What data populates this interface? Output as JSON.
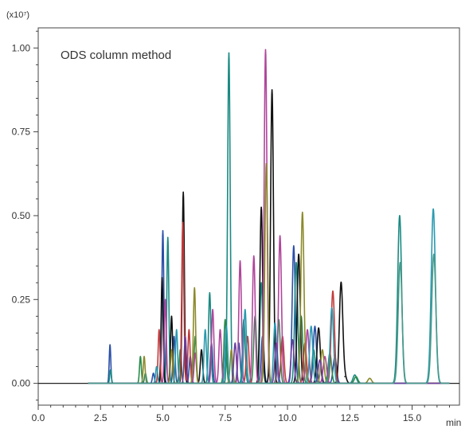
{
  "chart_data": {
    "type": "line",
    "title": "",
    "annotation": "ODS column method",
    "y_multiplier_label": "(x10⁷)",
    "xlabel": "min",
    "ylabel": "",
    "xlim": [
      0,
      16.9
    ],
    "ylim": [
      -0.065,
      1.06
    ],
    "x_ticks": [
      0.0,
      2.5,
      5.0,
      7.5,
      10.0,
      12.5,
      15.0
    ],
    "x_tick_labels": [
      "0.0",
      "2.5",
      "5.0",
      "7.5",
      "10.0",
      "12.5",
      "15.0"
    ],
    "x_minor_step": 0.5,
    "y_ticks": [
      0.0,
      0.25,
      0.5,
      0.75,
      1.0
    ],
    "y_tick_labels": [
      "0.00",
      "0.25",
      "0.50",
      "0.75",
      "1.00"
    ],
    "y_minor_step": 0.05,
    "grid": false,
    "baseline": 0.0,
    "series": [
      {
        "color": "#2b4fa8",
        "peaks": [
          [
            2.88,
            0.115
          ],
          [
            4.62,
            0.03
          ],
          [
            5.0,
            0.455
          ],
          [
            5.45,
            0.14
          ],
          [
            6.1,
            0.08
          ],
          [
            6.95,
            0.12
          ],
          [
            8.05,
            0.12
          ],
          [
            9.0,
            0.14
          ],
          [
            10.25,
            0.41
          ],
          [
            11.1,
            0.17
          ],
          [
            11.9,
            0.08
          ]
        ]
      },
      {
        "color": "#1a8a82",
        "peaks": [
          [
            2.9,
            0.04
          ],
          [
            4.3,
            0.03
          ],
          [
            5.2,
            0.435
          ],
          [
            6.88,
            0.27
          ],
          [
            7.65,
            0.985
          ],
          [
            8.25,
            0.19
          ],
          [
            8.95,
            0.3
          ],
          [
            10.35,
            0.36
          ],
          [
            11.05,
            0.1
          ],
          [
            12.7,
            0.025
          ],
          [
            14.5,
            0.5
          ]
        ]
      },
      {
        "color": "#2a8a4a",
        "peaks": [
          [
            4.1,
            0.08
          ],
          [
            5.7,
            0.1
          ],
          [
            6.3,
            0.14
          ],
          [
            7.5,
            0.19
          ],
          [
            8.7,
            0.2
          ],
          [
            9.65,
            0.19
          ],
          [
            10.55,
            0.2
          ],
          [
            11.7,
            0.09
          ],
          [
            12.75,
            0.02
          ]
        ]
      },
      {
        "color": "#111111",
        "peaks": [
          [
            4.97,
            0.315
          ],
          [
            5.35,
            0.2
          ],
          [
            5.82,
            0.57
          ],
          [
            6.55,
            0.1
          ],
          [
            8.95,
            0.525
          ],
          [
            9.38,
            0.875
          ],
          [
            10.45,
            0.385
          ],
          [
            11.25,
            0.165
          ],
          [
            12.15,
            0.3
          ],
          [
            12.3,
            0.02
          ]
        ]
      },
      {
        "color": "#c23b3b",
        "peaks": [
          [
            4.85,
            0.16
          ],
          [
            5.8,
            0.48
          ],
          [
            6.05,
            0.16
          ],
          [
            8.4,
            0.14
          ],
          [
            9.8,
            0.14
          ],
          [
            10.7,
            0.12
          ],
          [
            11.82,
            0.275
          ]
        ]
      },
      {
        "color": "#b0469c",
        "peaks": [
          [
            5.1,
            0.25
          ],
          [
            6.3,
            0.09
          ],
          [
            7.0,
            0.22
          ],
          [
            7.3,
            0.16
          ],
          [
            8.1,
            0.365
          ],
          [
            8.65,
            0.38
          ],
          [
            9.12,
            0.995
          ],
          [
            9.7,
            0.44
          ],
          [
            10.8,
            0.16
          ],
          [
            11.5,
            0.08
          ]
        ]
      },
      {
        "color": "#8c8a2a",
        "peaks": [
          [
            4.25,
            0.08
          ],
          [
            5.35,
            0.1
          ],
          [
            6.27,
            0.285
          ],
          [
            7.75,
            0.1
          ],
          [
            9.15,
            0.655
          ],
          [
            10.6,
            0.51
          ],
          [
            11.4,
            0.1
          ],
          [
            13.3,
            0.015
          ]
        ]
      },
      {
        "color": "#2a9ab0",
        "peaks": [
          [
            4.75,
            0.05
          ],
          [
            5.55,
            0.16
          ],
          [
            6.7,
            0.16
          ],
          [
            7.55,
            0.17
          ],
          [
            8.3,
            0.22
          ],
          [
            9.5,
            0.18
          ],
          [
            10.95,
            0.17
          ],
          [
            11.78,
            0.225
          ],
          [
            15.85,
            0.52
          ]
        ]
      },
      {
        "color": "#6a3fa0",
        "peaks": [
          [
            5.9,
            0.14
          ],
          [
            7.9,
            0.12
          ],
          [
            9.55,
            0.12
          ],
          [
            10.2,
            0.13
          ],
          [
            11.3,
            0.07
          ]
        ]
      },
      {
        "color": "#4a9a8a",
        "peaks": [
          [
            14.52,
            0.36
          ],
          [
            15.87,
            0.385
          ]
        ]
      }
    ]
  }
}
